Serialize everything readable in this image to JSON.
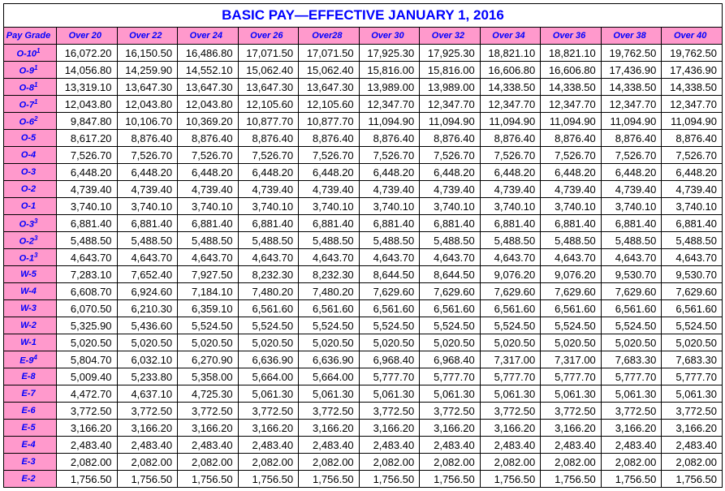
{
  "title": "BASIC PAY—EFFECTIVE JANUARY 1, 2016",
  "columns": [
    "Pay Grade",
    "Over 20",
    "Over 22",
    "Over 24",
    "Over 26",
    "Over28",
    "Over 30",
    "Over 32",
    "Over 34",
    "Over 36",
    "Over 38",
    "Over 40"
  ],
  "rows": [
    {
      "grade": "O-10",
      "sup": "1",
      "v": [
        "16,072.20",
        "16,150.50",
        "16,486.80",
        "17,071.50",
        "17,071.50",
        "17,925.30",
        "17,925.30",
        "18,821.10",
        "18,821.10",
        "19,762.50",
        "19,762.50"
      ]
    },
    {
      "grade": "O-9",
      "sup": "1",
      "v": [
        "14,056.80",
        "14,259.90",
        "14,552.10",
        "15,062.40",
        "15,062.40",
        "15,816.00",
        "15,816.00",
        "16,606.80",
        "16,606.80",
        "17,436.90",
        "17,436.90"
      ]
    },
    {
      "grade": "O-8",
      "sup": "1",
      "v": [
        "13,319.10",
        "13,647.30",
        "13,647.30",
        "13,647.30",
        "13,647.30",
        "13,989.00",
        "13,989.00",
        "14,338.50",
        "14,338.50",
        "14,338.50",
        "14,338.50"
      ]
    },
    {
      "grade": "O-7",
      "sup": "1",
      "v": [
        "12,043.80",
        "12,043.80",
        "12,043.80",
        "12,105.60",
        "12,105.60",
        "12,347.70",
        "12,347.70",
        "12,347.70",
        "12,347.70",
        "12,347.70",
        "12,347.70"
      ]
    },
    {
      "grade": "O-6",
      "sup": "2",
      "v": [
        "9,847.80",
        "10,106.70",
        "10,369.20",
        "10,877.70",
        "10,877.70",
        "11,094.90",
        "11,094.90",
        "11,094.90",
        "11,094.90",
        "11,094.90",
        "11,094.90"
      ]
    },
    {
      "grade": "O-5",
      "v": [
        "8,617.20",
        "8,876.40",
        "8,876.40",
        "8,876.40",
        "8,876.40",
        "8,876.40",
        "8,876.40",
        "8,876.40",
        "8,876.40",
        "8,876.40",
        "8,876.40"
      ]
    },
    {
      "grade": "O-4",
      "v": [
        "7,526.70",
        "7,526.70",
        "7,526.70",
        "7,526.70",
        "7,526.70",
        "7,526.70",
        "7,526.70",
        "7,526.70",
        "7,526.70",
        "7,526.70",
        "7,526.70"
      ]
    },
    {
      "grade": "O-3",
      "v": [
        "6,448.20",
        "6,448.20",
        "6,448.20",
        "6,448.20",
        "6,448.20",
        "6,448.20",
        "6,448.20",
        "6,448.20",
        "6,448.20",
        "6,448.20",
        "6,448.20"
      ]
    },
    {
      "grade": "O-2",
      "v": [
        "4,739.40",
        "4,739.40",
        "4,739.40",
        "4,739.40",
        "4,739.40",
        "4,739.40",
        "4,739.40",
        "4,739.40",
        "4,739.40",
        "4,739.40",
        "4,739.40"
      ]
    },
    {
      "grade": "O-1",
      "v": [
        "3,740.10",
        "3,740.10",
        "3,740.10",
        "3,740.10",
        "3,740.10",
        "3,740.10",
        "3,740.10",
        "3,740.10",
        "3,740.10",
        "3,740.10",
        "3,740.10"
      ]
    },
    {
      "grade": "O-3",
      "sup": "3",
      "v": [
        "6,881.40",
        "6,881.40",
        "6,881.40",
        "6,881.40",
        "6,881.40",
        "6,881.40",
        "6,881.40",
        "6,881.40",
        "6,881.40",
        "6,881.40",
        "6,881.40"
      ]
    },
    {
      "grade": "O-2",
      "sup": "3",
      "v": [
        "5,488.50",
        "5,488.50",
        "5,488.50",
        "5,488.50",
        "5,488.50",
        "5,488.50",
        "5,488.50",
        "5,488.50",
        "5,488.50",
        "5,488.50",
        "5,488.50"
      ]
    },
    {
      "grade": "O-1",
      "sup": "3",
      "v": [
        "4,643.70",
        "4,643.70",
        "4,643.70",
        "4,643.70",
        "4,643.70",
        "4,643.70",
        "4,643.70",
        "4,643.70",
        "4,643.70",
        "4,643.70",
        "4,643.70"
      ]
    },
    {
      "grade": "W-5",
      "v": [
        "7,283.10",
        "7,652.40",
        "7,927.50",
        "8,232.30",
        "8,232.30",
        "8,644.50",
        "8,644.50",
        "9,076.20",
        "9,076.20",
        "9,530.70",
        "9,530.70"
      ]
    },
    {
      "grade": "W-4",
      "v": [
        "6,608.70",
        "6,924.60",
        "7,184.10",
        "7,480.20",
        "7,480.20",
        "7,629.60",
        "7,629.60",
        "7,629.60",
        "7,629.60",
        "7,629.60",
        "7,629.60"
      ]
    },
    {
      "grade": "W-3",
      "v": [
        "6,070.50",
        "6,210.30",
        "6,359.10",
        "6,561.60",
        "6,561.60",
        "6,561.60",
        "6,561.60",
        "6,561.60",
        "6,561.60",
        "6,561.60",
        "6,561.60"
      ]
    },
    {
      "grade": "W-2",
      "v": [
        "5,325.90",
        "5,436.60",
        "5,524.50",
        "5,524.50",
        "5,524.50",
        "5,524.50",
        "5,524.50",
        "5,524.50",
        "5,524.50",
        "5,524.50",
        "5,524.50"
      ]
    },
    {
      "grade": "W-1",
      "v": [
        "5,020.50",
        "5,020.50",
        "5,020.50",
        "5,020.50",
        "5,020.50",
        "5,020.50",
        "5,020.50",
        "5,020.50",
        "5,020.50",
        "5,020.50",
        "5,020.50"
      ]
    },
    {
      "grade": "E-9",
      "sup": "4",
      "v": [
        "5,804.70",
        "6,032.10",
        "6,270.90",
        "6,636.90",
        "6,636.90",
        "6,968.40",
        "6,968.40",
        "7,317.00",
        "7,317.00",
        "7,683.30",
        "7,683.30"
      ]
    },
    {
      "grade": "E-8",
      "v": [
        "5,009.40",
        "5,233.80",
        "5,358.00",
        "5,664.00",
        "5,664.00",
        "5,777.70",
        "5,777.70",
        "5,777.70",
        "5,777.70",
        "5,777.70",
        "5,777.70"
      ]
    },
    {
      "grade": "E-7",
      "v": [
        "4,472.70",
        "4,637.10",
        "4,725.30",
        "5,061.30",
        "5,061.30",
        "5,061.30",
        "5,061.30",
        "5,061.30",
        "5,061.30",
        "5,061.30",
        "5,061.30"
      ]
    },
    {
      "grade": "E-6",
      "v": [
        "3,772.50",
        "3,772.50",
        "3,772.50",
        "3,772.50",
        "3,772.50",
        "3,772.50",
        "3,772.50",
        "3,772.50",
        "3,772.50",
        "3,772.50",
        "3,772.50"
      ]
    },
    {
      "grade": "E-5",
      "v": [
        "3,166.20",
        "3,166.20",
        "3,166.20",
        "3,166.20",
        "3,166.20",
        "3,166.20",
        "3,166.20",
        "3,166.20",
        "3,166.20",
        "3,166.20",
        "3,166.20"
      ]
    },
    {
      "grade": "E-4",
      "v": [
        "2,483.40",
        "2,483.40",
        "2,483.40",
        "2,483.40",
        "2,483.40",
        "2,483.40",
        "2,483.40",
        "2,483.40",
        "2,483.40",
        "2,483.40",
        "2,483.40"
      ]
    },
    {
      "grade": "E-3",
      "v": [
        "2,082.00",
        "2,082.00",
        "2,082.00",
        "2,082.00",
        "2,082.00",
        "2,082.00",
        "2,082.00",
        "2,082.00",
        "2,082.00",
        "2,082.00",
        "2,082.00"
      ]
    },
    {
      "grade": "E-2",
      "v": [
        "1,756.50",
        "1,756.50",
        "1,756.50",
        "1,756.50",
        "1,756.50",
        "1,756.50",
        "1,756.50",
        "1,756.50",
        "1,756.50",
        "1,756.50",
        "1,756.50"
      ]
    }
  ],
  "style": {
    "header_bg": "#ff99cc",
    "header_fg": "#0000ff",
    "title_fg": "#0000ff",
    "border": "#000000",
    "font_family": "Arial"
  }
}
